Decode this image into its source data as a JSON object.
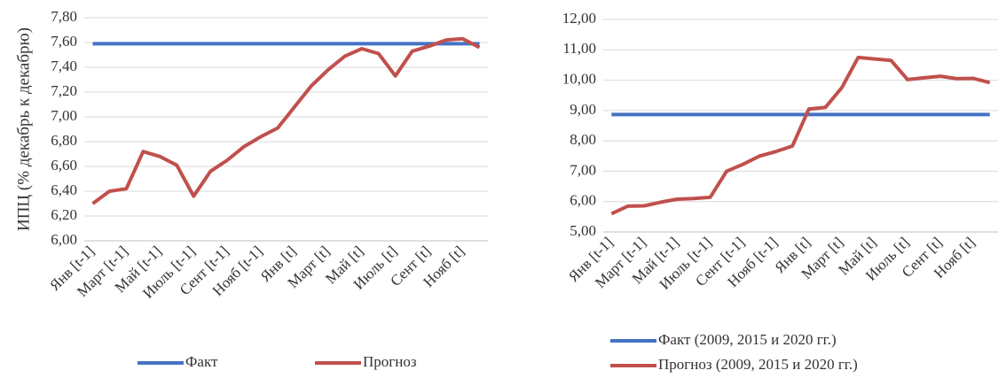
{
  "chart_data": [
    {
      "type": "line",
      "y_label": "ИПЦ (% декабрь к декабрю)",
      "categories": [
        "Янв [t-1]",
        null,
        "Март [t-1]",
        null,
        "Май [t-1]",
        null,
        "Июль [t-1]",
        null,
        "Сент [t-1]",
        null,
        "Нояб [t-1]",
        null,
        "Янв [t]",
        null,
        "Март [t]",
        null,
        "Май [t]",
        null,
        "Июль [t]",
        null,
        "Сент [t]",
        null,
        "Нояб [t]",
        null
      ],
      "series": [
        {
          "name": "Факт",
          "color": "#4472c4",
          "values": [
            7.59,
            7.59,
            7.59,
            7.59,
            7.59,
            7.59,
            7.59,
            7.59,
            7.59,
            7.59,
            7.59,
            7.59,
            7.59,
            7.59,
            7.59,
            7.59,
            7.59,
            7.59,
            7.59,
            7.59,
            7.59,
            7.59,
            7.59,
            7.59
          ]
        },
        {
          "name": "Прогноз",
          "color": "#c0504d",
          "values": [
            6.3,
            6.4,
            6.42,
            6.72,
            6.68,
            6.61,
            6.36,
            6.56,
            6.65,
            6.76,
            6.84,
            6.91,
            7.08,
            7.25,
            7.38,
            7.49,
            7.55,
            7.51,
            7.33,
            7.53,
            7.57,
            7.62,
            7.63,
            7.56
          ]
        }
      ],
      "ylim": [
        6.0,
        7.8
      ],
      "yticks": [
        {
          "value": 6.0,
          "label": "6,00"
        },
        {
          "value": 6.2,
          "label": "6,20"
        },
        {
          "value": 6.4,
          "label": "6,40"
        },
        {
          "value": 6.6,
          "label": "6,60"
        },
        {
          "value": 6.8,
          "label": "6,80"
        },
        {
          "value": 7.0,
          "label": "7,00"
        },
        {
          "value": 7.2,
          "label": "7,20"
        },
        {
          "value": 7.4,
          "label": "7,40"
        },
        {
          "value": 7.6,
          "label": "7,60"
        },
        {
          "value": 7.8,
          "label": "7,80"
        }
      ],
      "grid": true,
      "legend": "bottom"
    },
    {
      "type": "line",
      "categories": [
        "Янв [t-1]",
        null,
        "Март [t-1]",
        null,
        "Май [t-1]",
        null,
        "Июль [t-1]",
        null,
        "Сент [t-1]",
        null,
        "Нояб [t-1]",
        null,
        "Янв [t]",
        null,
        "Март [t]",
        null,
        "Май [t]",
        null,
        "Июль [t]",
        null,
        "Сент [t]",
        null,
        "Нояб [t]",
        null
      ],
      "series": [
        {
          "name": "Факт (2009, 2015 и 2020 гг.)",
          "color": "#4472c4",
          "values": [
            8.87,
            8.87,
            8.87,
            8.87,
            8.87,
            8.87,
            8.87,
            8.87,
            8.87,
            8.87,
            8.87,
            8.87,
            8.87,
            8.87,
            8.87,
            8.87,
            8.87,
            8.87,
            8.87,
            8.87,
            8.87,
            8.87,
            8.87,
            8.87
          ]
        },
        {
          "name": "Прогноз (2009, 2015 и 2020 гг.)",
          "color": "#c0504d",
          "values": [
            5.6,
            5.85,
            5.86,
            5.98,
            6.08,
            6.1,
            6.14,
            7.0,
            7.23,
            7.5,
            7.65,
            7.83,
            9.05,
            9.1,
            9.75,
            10.75,
            10.7,
            10.65,
            10.02,
            10.08,
            10.13,
            10.05,
            10.06,
            9.92
          ]
        }
      ],
      "ylim": [
        5.0,
        12.0
      ],
      "yticks": [
        {
          "value": 5,
          "label": "5,00"
        },
        {
          "value": 6,
          "label": "6,00"
        },
        {
          "value": 7,
          "label": "7,00"
        },
        {
          "value": 8,
          "label": "8,00"
        },
        {
          "value": 9,
          "label": "9,00"
        },
        {
          "value": 10,
          "label": "10,00"
        },
        {
          "value": 11,
          "label": "11,00"
        },
        {
          "value": 12,
          "label": "12,00"
        }
      ],
      "grid": true,
      "legend": "bottom"
    }
  ]
}
